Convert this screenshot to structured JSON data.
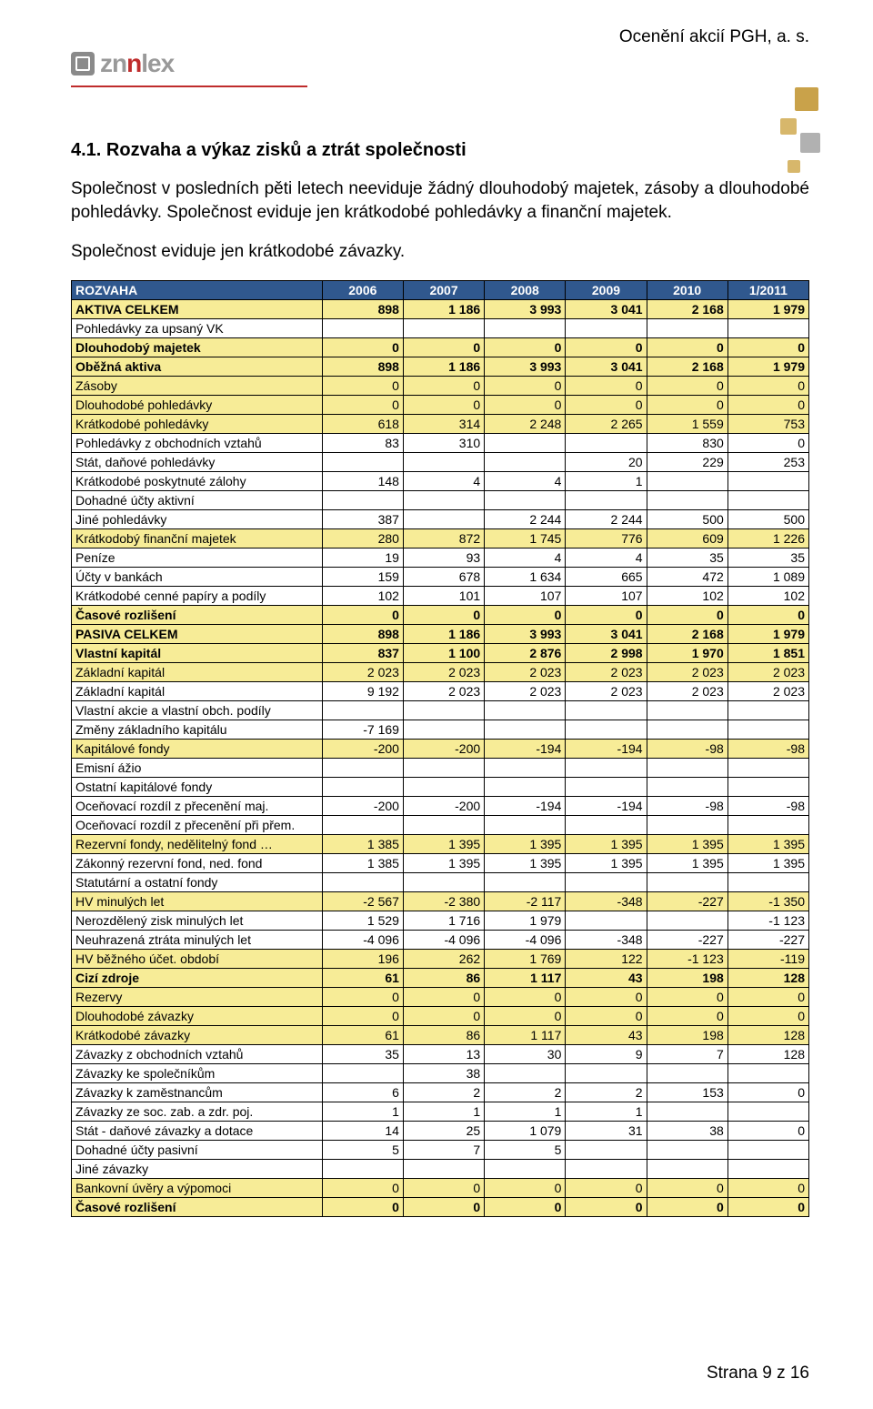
{
  "doc": {
    "header": "Ocenění akcií PGH, a. s.",
    "logo_text_plain": "zn",
    "logo_text_accent": "n",
    "logo_text_tail": "lex",
    "section_number": "4.1.",
    "section_title": "Rozvaha a výkaz zisků a ztrát společnosti",
    "para1": "Společnost v posledních pěti letech neeviduje žádný dlouhodobý majetek, zásoby a dlouhodobé pohledávky. Společnost eviduje jen krátkodobé pohledávky a finanční majetek.",
    "para2": "Společnost eviduje jen krátkodobé závazky.",
    "footer": "Strana 9 z 16"
  },
  "colors": {
    "header_blue": "#30588e",
    "row_yellow": "#f7ec97",
    "border": "#000000"
  },
  "table": {
    "title_cell": "ROZVAHA",
    "col_widths_pct": [
      34,
      11,
      11,
      11,
      11,
      11,
      11
    ],
    "header_color": "#30588e",
    "header_text_color": "#ffffff",
    "highlight_color": "#f7ec97",
    "columns": [
      "2006",
      "2007",
      "2008",
      "2009",
      "2010",
      "1/2011"
    ],
    "rows": [
      {
        "label": "AKTIVA CELKEM",
        "v": [
          "898",
          "1 186",
          "3 993",
          "3 041",
          "2 168",
          "1 979"
        ],
        "hl": true,
        "bold": true
      },
      {
        "label": "Pohledávky za upsaný VK",
        "v": [
          "",
          "",
          "",
          "",
          "",
          ""
        ],
        "hl": false,
        "bold": false
      },
      {
        "label": "Dlouhodobý majetek",
        "v": [
          "0",
          "0",
          "0",
          "0",
          "0",
          "0"
        ],
        "hl": true,
        "bold": true
      },
      {
        "label": "Oběžná aktiva",
        "v": [
          "898",
          "1 186",
          "3 993",
          "3 041",
          "2 168",
          "1 979"
        ],
        "hl": true,
        "bold": true
      },
      {
        "label": "Zásoby",
        "v": [
          "0",
          "0",
          "0",
          "0",
          "0",
          "0"
        ],
        "hl": true,
        "bold": false
      },
      {
        "label": "Dlouhodobé pohledávky",
        "v": [
          "0",
          "0",
          "0",
          "0",
          "0",
          "0"
        ],
        "hl": true,
        "bold": false
      },
      {
        "label": "Krátkodobé pohledávky",
        "v": [
          "618",
          "314",
          "2 248",
          "2 265",
          "1 559",
          "753"
        ],
        "hl": true,
        "bold": false
      },
      {
        "label": " Pohledávky z obchodních vztahů",
        "v": [
          "83",
          "310",
          "",
          "",
          "830",
          "0"
        ],
        "hl": false,
        "bold": false
      },
      {
        "label": " Stát, daňové pohledávky",
        "v": [
          "",
          "",
          "",
          "20",
          "229",
          "253"
        ],
        "hl": false,
        "bold": false
      },
      {
        "label": " Krátkodobé poskytnuté zálohy",
        "v": [
          "148",
          "4",
          "4",
          "1",
          "",
          ""
        ],
        "hl": false,
        "bold": false
      },
      {
        "label": " Dohadné účty aktivní",
        "v": [
          "",
          "",
          "",
          "",
          "",
          ""
        ],
        "hl": false,
        "bold": false
      },
      {
        "label": " Jiné pohledávky",
        "v": [
          "387",
          "",
          "2 244",
          "2 244",
          "500",
          "500"
        ],
        "hl": false,
        "bold": false
      },
      {
        "label": "Krátkodobý finanční majetek",
        "v": [
          "280",
          "872",
          "1 745",
          "776",
          "609",
          "1 226"
        ],
        "hl": true,
        "bold": false
      },
      {
        "label": " Peníze",
        "v": [
          "19",
          "93",
          "4",
          "4",
          "35",
          "35"
        ],
        "hl": false,
        "bold": false
      },
      {
        "label": " Účty v bankách",
        "v": [
          "159",
          "678",
          "1 634",
          "665",
          "472",
          "1 089"
        ],
        "hl": false,
        "bold": false
      },
      {
        "label": " Krátkodobé cenné papíry a podíly",
        "v": [
          "102",
          "101",
          "107",
          "107",
          "102",
          "102"
        ],
        "hl": false,
        "bold": false
      },
      {
        "label": "Časové rozlišení",
        "v": [
          "0",
          "0",
          "0",
          "0",
          "0",
          "0"
        ],
        "hl": true,
        "bold": true
      },
      {
        "label": "PASIVA CELKEM",
        "v": [
          "898",
          "1 186",
          "3 993",
          "3 041",
          "2 168",
          "1 979"
        ],
        "hl": true,
        "bold": true
      },
      {
        "label": "Vlastní kapitál",
        "v": [
          "837",
          "1 100",
          "2 876",
          "2 998",
          "1 970",
          "1 851"
        ],
        "hl": true,
        "bold": true
      },
      {
        "label": "Základní kapitál",
        "v": [
          "2 023",
          "2 023",
          "2 023",
          "2 023",
          "2 023",
          "2 023"
        ],
        "hl": true,
        "bold": false
      },
      {
        "label": " Základní kapitál",
        "v": [
          "9 192",
          "2 023",
          "2 023",
          "2 023",
          "2 023",
          "2 023"
        ],
        "hl": false,
        "bold": false
      },
      {
        "label": " Vlastní akcie a vlastní obch. podíly",
        "v": [
          "",
          "",
          "",
          "",
          "",
          ""
        ],
        "hl": false,
        "bold": false
      },
      {
        "label": " Změny základního kapitálu",
        "v": [
          "-7 169",
          "",
          "",
          "",
          "",
          ""
        ],
        "hl": false,
        "bold": false
      },
      {
        "label": "Kapitálové fondy",
        "v": [
          "-200",
          "-200",
          "-194",
          "-194",
          "-98",
          "-98"
        ],
        "hl": true,
        "bold": false
      },
      {
        "label": " Emisní ážio",
        "v": [
          "",
          "",
          "",
          "",
          "",
          ""
        ],
        "hl": false,
        "bold": false
      },
      {
        "label": " Ostatní kapitálové fondy",
        "v": [
          "",
          "",
          "",
          "",
          "",
          ""
        ],
        "hl": false,
        "bold": false
      },
      {
        "label": " Oceňovací rozdíl z přecenění maj.",
        "v": [
          "-200",
          "-200",
          "-194",
          "-194",
          "-98",
          "-98"
        ],
        "hl": false,
        "bold": false
      },
      {
        "label": " Oceňovací rozdíl z přecenění při přem.",
        "v": [
          "",
          "",
          "",
          "",
          "",
          ""
        ],
        "hl": false,
        "bold": false
      },
      {
        "label": "Rezervní fondy, nedělitelný fond …",
        "v": [
          "1 385",
          "1 395",
          "1 395",
          "1 395",
          "1 395",
          "1 395"
        ],
        "hl": true,
        "bold": false
      },
      {
        "label": " Zákonný rezervní fond, ned. fond",
        "v": [
          "1 385",
          "1 395",
          "1 395",
          "1 395",
          "1 395",
          "1 395"
        ],
        "hl": false,
        "bold": false
      },
      {
        "label": " Statutární  a ostatní fondy",
        "v": [
          "",
          "",
          "",
          "",
          "",
          ""
        ],
        "hl": false,
        "bold": false
      },
      {
        "label": "HV minulých let",
        "v": [
          "-2 567",
          "-2 380",
          "-2 117",
          "-348",
          "-227",
          "-1 350"
        ],
        "hl": true,
        "bold": false
      },
      {
        "label": " Nerozdělený zisk minulých let",
        "v": [
          "1 529",
          "1 716",
          "1 979",
          "",
          "",
          "-1 123"
        ],
        "hl": false,
        "bold": false
      },
      {
        "label": " Neuhrazená ztráta minulých let",
        "v": [
          "-4 096",
          "-4 096",
          "-4 096",
          "-348",
          "-227",
          "-227"
        ],
        "hl": false,
        "bold": false
      },
      {
        "label": "HV běžného účet. období",
        "v": [
          "196",
          "262",
          "1 769",
          "122",
          "-1 123",
          "-119"
        ],
        "hl": true,
        "bold": false
      },
      {
        "label": "Cizí zdroje",
        "v": [
          "61",
          "86",
          "1 117",
          "43",
          "198",
          "128"
        ],
        "hl": true,
        "bold": true
      },
      {
        "label": "Rezervy",
        "v": [
          "0",
          "0",
          "0",
          "0",
          "0",
          "0"
        ],
        "hl": true,
        "bold": false
      },
      {
        "label": "Dlouhodobé závazky",
        "v": [
          "0",
          "0",
          "0",
          "0",
          "0",
          "0"
        ],
        "hl": true,
        "bold": false
      },
      {
        "label": "Krátkodobé závazky",
        "v": [
          "61",
          "86",
          "1 117",
          "43",
          "198",
          "128"
        ],
        "hl": true,
        "bold": false
      },
      {
        "label": " Závazky z obchodních vztahů",
        "v": [
          "35",
          "13",
          "30",
          "9",
          "7",
          "128"
        ],
        "hl": false,
        "bold": false
      },
      {
        "label": " Závazky ke společníkům",
        "v": [
          "",
          "38",
          "",
          "",
          "",
          ""
        ],
        "hl": false,
        "bold": false
      },
      {
        "label": " Závazky k zaměstnancům",
        "v": [
          "6",
          "2",
          "2",
          "2",
          "153",
          "0"
        ],
        "hl": false,
        "bold": false
      },
      {
        "label": " Závazky ze soc. zab. a zdr. poj.",
        "v": [
          "1",
          "1",
          "1",
          "1",
          "",
          ""
        ],
        "hl": false,
        "bold": false
      },
      {
        "label": " Stát - daňové závazky a dotace",
        "v": [
          "14",
          "25",
          "1 079",
          "31",
          "38",
          "0"
        ],
        "hl": false,
        "bold": false
      },
      {
        "label": " Dohadné účty pasivní",
        "v": [
          "5",
          "7",
          "5",
          "",
          "",
          ""
        ],
        "hl": false,
        "bold": false
      },
      {
        "label": " Jiné závazky",
        "v": [
          "",
          "",
          "",
          "",
          "",
          ""
        ],
        "hl": false,
        "bold": false
      },
      {
        "label": "Bankovní úvěry a výpomoci",
        "v": [
          "0",
          "0",
          "0",
          "0",
          "0",
          "0"
        ],
        "hl": true,
        "bold": false
      },
      {
        "label": "Časové rozlišení",
        "v": [
          "0",
          "0",
          "0",
          "0",
          "0",
          "0"
        ],
        "hl": true,
        "bold": true
      }
    ]
  }
}
